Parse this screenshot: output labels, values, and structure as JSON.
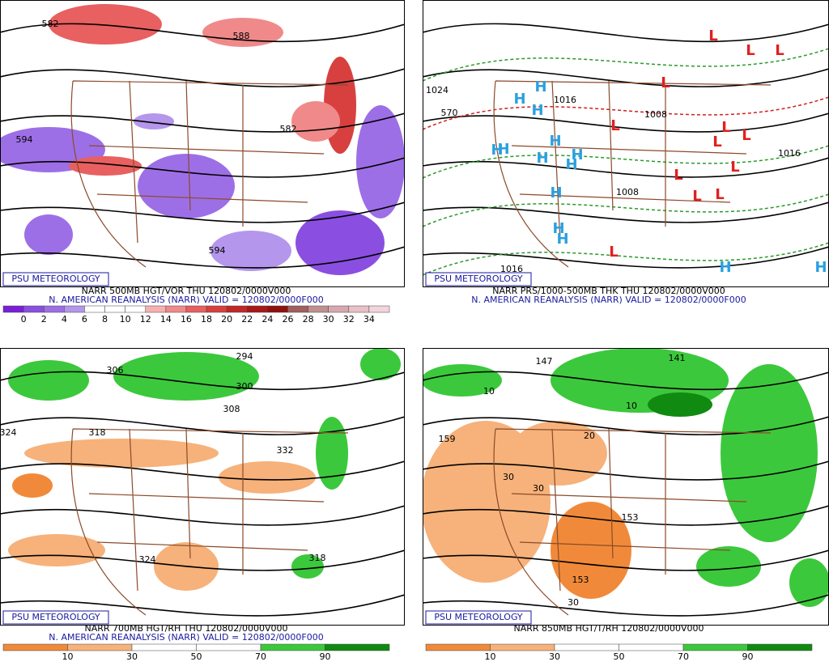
{
  "panels": [
    {
      "brand": "PSU METEOROLOGY",
      "title": "NARR 500MB HGT/VOR THU 120802/0000V000",
      "subtitle": "N. AMERICAN REANALYSIS (NARR) VALID = 120802/0000F000",
      "colorbar": {
        "labels": [
          0,
          2,
          4,
          6,
          8,
          10,
          12,
          14,
          16,
          18,
          20,
          22,
          24,
          26,
          28,
          30,
          32,
          34
        ],
        "colors": [
          "#7a1fd6",
          "#8a4fe0",
          "#9d6fe6",
          "#b497ec",
          "#ffffff",
          "#ffffff",
          "#ffffff",
          "#f7b0b0",
          "#f08a8a",
          "#e86060",
          "#d84040",
          "#c02828",
          "#a81818",
          "#901010",
          "#a06060",
          "#c09090",
          "#d8a8b0",
          "#e8c0c8",
          "#f4d4dc"
        ]
      },
      "contour_labels": [
        "582",
        "594",
        "588",
        "582",
        "594"
      ]
    },
    {
      "brand": "PSU METEOROLOGY",
      "title": "NARR PRS/1000-500MB THK THU 120802/0000V000",
      "subtitle": "N. AMERICAN REANALYSIS (NARR) VALID = 120802/0000F000",
      "high": "H",
      "low": "L",
      "contour_labels": [
        "1024",
        "1016",
        "1008",
        "1008",
        "1016",
        "1016",
        "570"
      ]
    },
    {
      "brand": "PSU METEOROLOGY",
      "title": "NARR 700MB HGT/RH THU 120802/0000V000",
      "subtitle": "N. AMERICAN REANALYSIS (NARR) VALID = 120802/0000F000",
      "colorbar": {
        "labels": [
          10,
          30,
          50,
          70,
          90
        ],
        "colors": [
          "#f08a3a",
          "#f6b27a",
          "#ffffff",
          "#ffffff",
          "#3cc83c",
          "#108a10"
        ]
      },
      "contour_labels": [
        "306",
        "294",
        "300",
        "308",
        "318",
        "324",
        "332",
        "324",
        "318"
      ]
    },
    {
      "brand": "PSU METEOROLOGY",
      "title": "NARR 850MB HGT/T/RH 120802/0000V000",
      "colorbar": {
        "labels": [
          10,
          30,
          50,
          70,
          90
        ],
        "colors": [
          "#f08a3a",
          "#f6b27a",
          "#ffffff",
          "#ffffff",
          "#3cc83c",
          "#108a10"
        ]
      },
      "contour_labels": [
        "147",
        "141",
        "159",
        "153",
        "153",
        "10",
        "10",
        "20",
        "30",
        "30",
        "30"
      ]
    }
  ]
}
